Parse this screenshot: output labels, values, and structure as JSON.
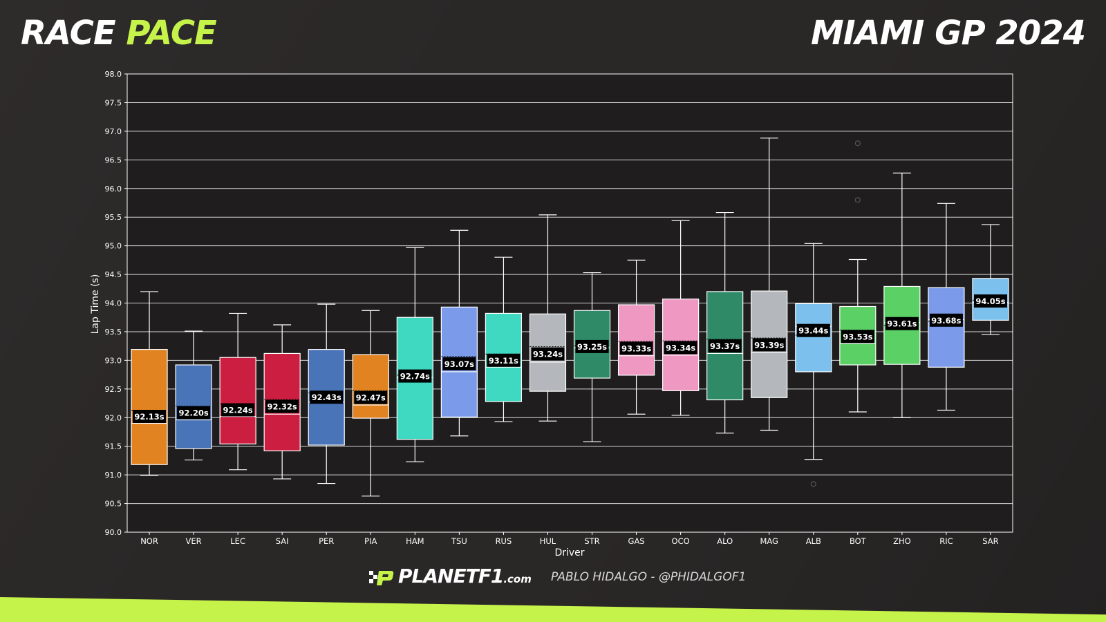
{
  "header": {
    "title_part1": "RACE",
    "title_part2": "PACE",
    "event_title": "MIAMI GP 2024"
  },
  "footer": {
    "logo_text": "PLANETF1",
    "logo_domain": ".com",
    "credit": "PABLO HIDALGO - @PHIDALGOF1",
    "accent_color": "#c6f34a"
  },
  "chart_data": {
    "type": "box",
    "xlabel": "Driver",
    "ylabel": "Lap Time (s)",
    "ylim": [
      90.0,
      98.0
    ],
    "yticks": [
      "90.0",
      "90.5",
      "91.0",
      "91.5",
      "92.0",
      "92.5",
      "93.0",
      "93.5",
      "94.0",
      "94.5",
      "95.0",
      "95.5",
      "96.0",
      "96.5",
      "97.0",
      "97.5",
      "98.0"
    ],
    "grid": true,
    "series": [
      {
        "driver": "NOR",
        "color": "#e08320",
        "min": 90.99,
        "q1": 91.18,
        "median": 91.9,
        "q3": 93.19,
        "max": 94.2,
        "mean": 92.13,
        "label": "92.13s",
        "outliers": []
      },
      {
        "driver": "VER",
        "color": "#4a74b8",
        "min": 91.26,
        "q1": 91.46,
        "median": 91.96,
        "q3": 92.92,
        "max": 93.51,
        "mean": 92.2,
        "label": "92.20s",
        "outliers": []
      },
      {
        "driver": "LEC",
        "color": "#cc1e40",
        "min": 91.09,
        "q1": 91.54,
        "median": 92.02,
        "q3": 93.05,
        "max": 93.82,
        "mean": 92.24,
        "label": "92.24s",
        "outliers": []
      },
      {
        "driver": "SAI",
        "color": "#cc1e40",
        "min": 90.93,
        "q1": 91.42,
        "median": 92.06,
        "q3": 93.12,
        "max": 93.62,
        "mean": 92.32,
        "label": "92.32s",
        "outliers": []
      },
      {
        "driver": "PER",
        "color": "#4a74b8",
        "min": 90.85,
        "q1": 91.52,
        "median": 92.27,
        "q3": 93.19,
        "max": 93.98,
        "mean": 92.43,
        "label": "92.43s",
        "outliers": []
      },
      {
        "driver": "PIA",
        "color": "#e08320",
        "min": 90.63,
        "q1": 91.99,
        "median": 92.22,
        "q3": 93.1,
        "max": 93.87,
        "mean": 92.47,
        "label": "92.47s",
        "outliers": []
      },
      {
        "driver": "HAM",
        "color": "#3fd9c2",
        "min": 91.23,
        "q1": 91.62,
        "median": 92.7,
        "q3": 93.75,
        "max": 94.97,
        "mean": 92.74,
        "label": "92.74s",
        "outliers": []
      },
      {
        "driver": "TSU",
        "color": "#7b9bea",
        "min": 91.68,
        "q1": 92.01,
        "median": 92.8,
        "q3": 93.93,
        "max": 95.27,
        "mean": 93.07,
        "label": "93.07s",
        "outliers": []
      },
      {
        "driver": "RUS",
        "color": "#3fd9c2",
        "min": 91.93,
        "q1": 92.28,
        "median": 92.88,
        "q3": 93.82,
        "max": 94.8,
        "mean": 93.11,
        "label": "93.11s",
        "outliers": []
      },
      {
        "driver": "HUL",
        "color": "#b4b8bc",
        "min": 91.94,
        "q1": 92.46,
        "median": 92.97,
        "q3": 93.81,
        "max": 95.54,
        "mean": 93.24,
        "label": "93.24s",
        "outliers": []
      },
      {
        "driver": "STR",
        "color": "#2e8a67",
        "min": 91.58,
        "q1": 92.69,
        "median": 93.22,
        "q3": 93.87,
        "max": 94.53,
        "mean": 93.25,
        "label": "93.25s",
        "outliers": []
      },
      {
        "driver": "GAS",
        "color": "#ef98c2",
        "min": 92.06,
        "q1": 92.74,
        "median": 93.08,
        "q3": 93.97,
        "max": 94.75,
        "mean": 93.33,
        "label": "93.33s",
        "outliers": []
      },
      {
        "driver": "OCO",
        "color": "#ef98c2",
        "min": 92.04,
        "q1": 92.47,
        "median": 93.09,
        "q3": 94.07,
        "max": 95.44,
        "mean": 93.34,
        "label": "93.34s",
        "outliers": []
      },
      {
        "driver": "ALO",
        "color": "#2e8a67",
        "min": 91.73,
        "q1": 92.31,
        "median": 93.12,
        "q3": 94.2,
        "max": 95.58,
        "mean": 93.37,
        "label": "93.37s",
        "outliers": []
      },
      {
        "driver": "MAG",
        "color": "#b4b8bc",
        "min": 91.78,
        "q1": 92.35,
        "median": 93.14,
        "q3": 94.21,
        "max": 96.88,
        "mean": 93.39,
        "label": "93.39s",
        "outliers": []
      },
      {
        "driver": "ALB",
        "color": "#7cc1ee",
        "min": 91.27,
        "q1": 92.8,
        "median": 93.59,
        "q3": 93.99,
        "max": 95.04,
        "mean": 93.44,
        "label": "93.44s",
        "outliers": [
          90.84
        ]
      },
      {
        "driver": "BOT",
        "color": "#5bd065",
        "min": 92.1,
        "q1": 92.92,
        "median": 93.29,
        "q3": 93.94,
        "max": 94.76,
        "mean": 93.53,
        "label": "93.53s",
        "outliers": [
          95.8,
          96.79
        ]
      },
      {
        "driver": "ZHO",
        "color": "#5bd065",
        "min": 92.0,
        "q1": 92.93,
        "median": 93.66,
        "q3": 94.29,
        "max": 96.27,
        "mean": 93.61,
        "label": "93.61s",
        "outliers": []
      },
      {
        "driver": "RIC",
        "color": "#7b9bea",
        "min": 92.13,
        "q1": 92.88,
        "median": 93.71,
        "q3": 94.27,
        "max": 95.74,
        "mean": 93.68,
        "label": "93.68s",
        "outliers": []
      },
      {
        "driver": "SAR",
        "color": "#7cc1ee",
        "min": 93.45,
        "q1": 93.7,
        "median": 94.01,
        "q3": 94.43,
        "max": 95.37,
        "mean": 94.05,
        "label": "94.05s",
        "outliers": []
      }
    ]
  }
}
